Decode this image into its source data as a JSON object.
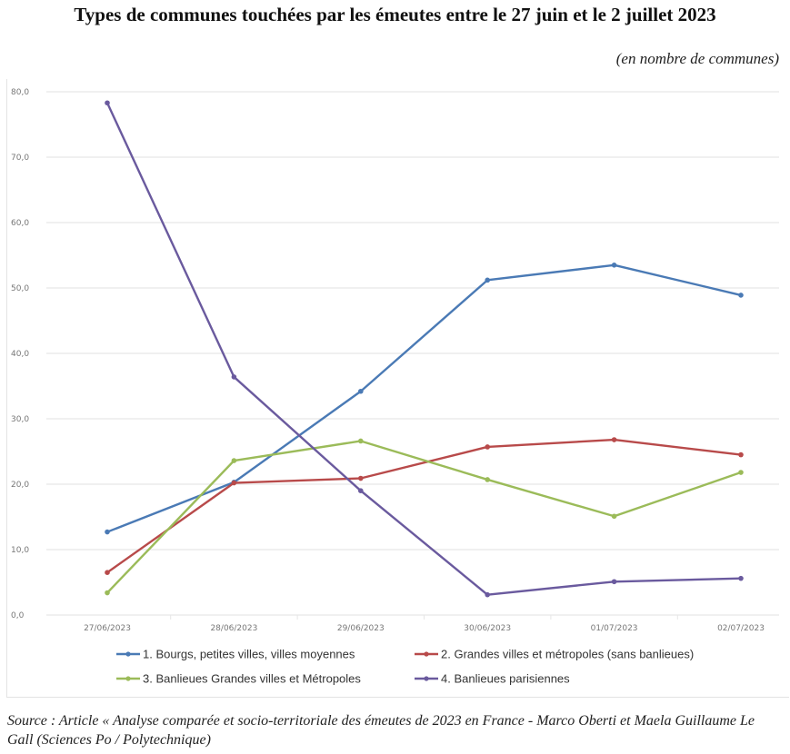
{
  "header": {
    "title": "Types de communes touchées par les émeutes entre le 27 juin et le 2 juillet 2023",
    "subtitle": "(en nombre de communes)"
  },
  "footer": {
    "source": "Source : Article « Analyse comparée et socio-territoriale des émeutes de 2023 en France - Marco Oberti et Maela Guillaume Le Gall (Sciences Po / Polytechnique)"
  },
  "chart_data": {
    "type": "line",
    "title": "Types de communes touchées par les émeutes entre le 27 juin et le 2 juillet 2023",
    "subtitle": "(en nombre de communes)",
    "xlabel": "",
    "ylabel": "",
    "categories": [
      "27/06/2023",
      "28/06/2023",
      "29/06/2023",
      "30/06/2023",
      "01/07/2023",
      "02/07/2023"
    ],
    "ylim": [
      0,
      80
    ],
    "yticks": [
      "0,0",
      "10,0",
      "20,0",
      "30,0",
      "40,0",
      "50,0",
      "60,0",
      "70,0",
      "80,0"
    ],
    "grid": true,
    "legend_position": "bottom",
    "series": [
      {
        "name": "1. Bourgs, petites villes, villes moyennes",
        "color": "#4a7ab5",
        "values": [
          12.7,
          20.3,
          34.2,
          51.2,
          53.5,
          48.9
        ]
      },
      {
        "name": "2. Grandes villes et métropoles (sans banlieues)",
        "color": "#b84a4a",
        "values": [
          6.5,
          20.2,
          20.9,
          25.7,
          26.8,
          24.5
        ]
      },
      {
        "name": "3. Banlieues Grandes villes et Métropoles",
        "color": "#9bbb59",
        "values": [
          3.4,
          23.6,
          26.6,
          20.7,
          15.1,
          21.8
        ]
      },
      {
        "name": "4. Banlieues parisiennes",
        "color": "#6a5a9e",
        "values": [
          78.3,
          36.4,
          19.0,
          3.1,
          5.1,
          5.6
        ]
      }
    ]
  }
}
